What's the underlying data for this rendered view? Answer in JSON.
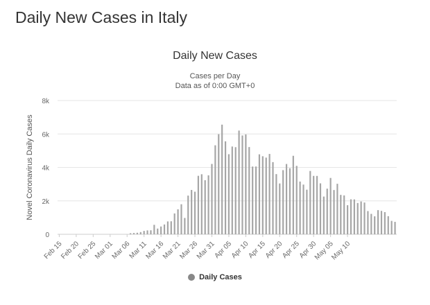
{
  "page": {
    "title": "Daily New Cases in Italy"
  },
  "chart_data": {
    "type": "bar",
    "title": "Daily New Cases",
    "subtitle": "Cases per Day",
    "subtitle2": "Data as of 0:00 GMT+0",
    "ylabel": "Novel Coronavirus Daily Cases",
    "xlabel": "",
    "ylim": [
      0,
      8000
    ],
    "yticks": [
      0,
      2000,
      4000,
      6000,
      8000
    ],
    "ytick_labels": [
      "0",
      "2k",
      "4k",
      "6k",
      "8k"
    ],
    "grid": true,
    "legend_position": "bottom-center",
    "bar_color": "#a6a6a6",
    "series": [
      {
        "name": "Daily Cases",
        "values": [
          0,
          0,
          0,
          0,
          0,
          0,
          0,
          0,
          0,
          0,
          0,
          0,
          0,
          0,
          0,
          0,
          0,
          0,
          0,
          0,
          0,
          62,
          78,
          93,
          131,
          202,
          233,
          240,
          566,
          342,
          466,
          587,
          769,
          778,
          1247,
          1492,
          1797,
          977,
          2313,
          2651,
          2547,
          3497,
          3590,
          3233,
          3526,
          4207,
          5322,
          5986,
          6557,
          5560,
          4789,
          5249,
          5210,
          6203,
          5909,
          5974,
          5217,
          4050,
          4053,
          4782,
          4668,
          4585,
          4805,
          4316,
          3599,
          3039,
          3836,
          4204,
          3951,
          4694,
          4092,
          3153,
          2972,
          2667,
          3786,
          3493,
          3491,
          3047,
          2256,
          2729,
          3370,
          2646,
          3021,
          2357,
          2324,
          1739,
          2091,
          2086,
          1872,
          1965,
          1900,
          1389,
          1221,
          1075,
          1444,
          1401,
          1327,
          1083,
          802,
          744
        ]
      }
    ],
    "x_tick_labels": [
      "Feb 15",
      "Feb 20",
      "Feb 25",
      "Mar 01",
      "Mar 06",
      "Mar 11",
      "Mar 16",
      "Mar 21",
      "Mar 26",
      "Mar 31",
      "Apr 05",
      "Apr 10",
      "Apr 15",
      "Apr 20",
      "Apr 25",
      "Apr 30",
      "May 05",
      "May 10"
    ]
  },
  "legend": {
    "label": "Daily Cases",
    "color": "#888888"
  }
}
